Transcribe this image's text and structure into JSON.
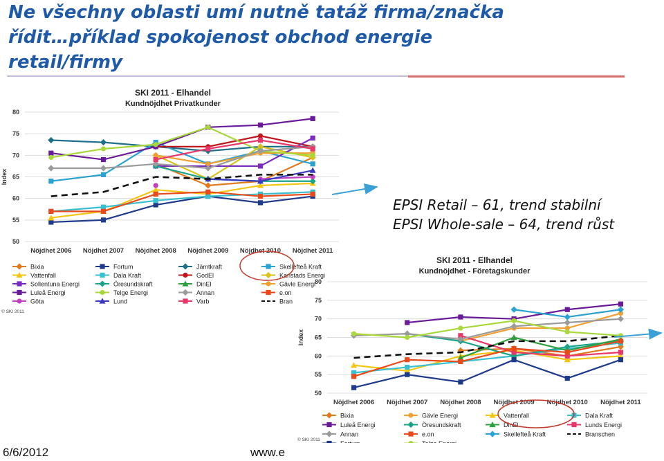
{
  "slide": {
    "title_lines": [
      "Ne všechny oblasti umí nutně tatáž firma/značka",
      "řídit…příklad spokojenost  obchod energie",
      "retail/firmy"
    ],
    "annotation_lines": [
      "EPSI Retail – 61, trend stabilní",
      "EPSI Whole-sale – 64, trend růst"
    ],
    "footer_date": "6/6/2012",
    "footer_www": "www.e"
  },
  "colors": {
    "title": "#1f5aa8",
    "arrow": "#3aa0d6",
    "circle": "#c0392b"
  },
  "chart_data": [
    {
      "type": "line",
      "title": "SKI 2011 - Elhandel",
      "subtitle": "Kundnöjdhet Privatkunder",
      "xlabel": "",
      "ylabel": "Index",
      "ylim": [
        50,
        80
      ],
      "yticks": [
        50,
        55,
        60,
        65,
        70,
        75,
        80
      ],
      "categories": [
        "Nöjdhet 2006",
        "Nöjdhet 2007",
        "Nöjdhet 2008",
        "Nöjdhet 2009",
        "Nöjdhet 2010",
        "Nöjdhet 2011"
      ],
      "copyright": "© SKI 2011",
      "grid": true,
      "series": [
        {
          "name": "Bixia",
          "color": "#e07b20",
          "marker": "diamond",
          "values": [
            null,
            null,
            68,
            63,
            64,
            69.5
          ]
        },
        {
          "name": "Fortum",
          "color": "#1e3a8a",
          "marker": "square",
          "values": [
            54.5,
            55,
            58.5,
            60.5,
            59,
            60.5
          ]
        },
        {
          "name": "Jämtkraft",
          "color": "#1f6f8b",
          "marker": "diamond",
          "values": [
            73.5,
            73,
            72,
            71,
            72,
            72
          ]
        },
        {
          "name": "Skellefteå Kraft",
          "color": "#2ba3d0",
          "marker": "square",
          "values": [
            64,
            65.5,
            73,
            68,
            71,
            68
          ]
        },
        {
          "name": "Vattenfall",
          "color": "#f3c612",
          "marker": "triangle",
          "values": [
            55.5,
            57,
            62,
            61,
            63,
            63.5
          ]
        },
        {
          "name": "Dala Kraft",
          "color": "#39c0d0",
          "marker": "square",
          "values": [
            57,
            58,
            59.5,
            60.5,
            61,
            61.5
          ]
        },
        {
          "name": "GodEl",
          "color": "#c0151a",
          "marker": "circle",
          "values": [
            null,
            null,
            72,
            72,
            74.5,
            72
          ]
        },
        {
          "name": "Karlstads Energi",
          "color": "#d9c21a",
          "marker": "diamond",
          "values": [
            null,
            null,
            70,
            64.5,
            72,
            69.5
          ]
        },
        {
          "name": "Sollentuna Energi",
          "color": "#7b2cbf",
          "marker": "square",
          "values": [
            null,
            null,
            67.5,
            67.5,
            67.5,
            74
          ]
        },
        {
          "name": "Öresundskraft",
          "color": "#1aa389",
          "marker": "diamond",
          "values": [
            null,
            null,
            67.5,
            64.5,
            64,
            64
          ]
        },
        {
          "name": "DinEl",
          "color": "#2e9e3e",
          "marker": "triangle",
          "values": [
            null,
            null,
            null,
            null,
            null,
            null
          ]
        },
        {
          "name": "Gävle Energi",
          "color": "#f0a030",
          "marker": "circle",
          "values": [
            null,
            null,
            70,
            68,
            70.5,
            70.5
          ]
        },
        {
          "name": "Luleå Energi",
          "color": "#6a1b9a",
          "marker": "square",
          "values": [
            70.5,
            69,
            72,
            76.5,
            77,
            78.5
          ]
        },
        {
          "name": "Telge Energi",
          "color": "#a8d83a",
          "marker": "circle",
          "values": [
            69.5,
            71.5,
            72.5,
            76.5,
            71,
            70
          ]
        },
        {
          "name": "Annan",
          "color": "#9a9a9a",
          "marker": "diamond",
          "values": [
            67,
            67,
            68,
            67,
            71,
            72
          ]
        },
        {
          "name": "e.on",
          "color": "#e84a1c",
          "marker": "square",
          "values": [
            57,
            57,
            61,
            61.5,
            60.5,
            61
          ]
        },
        {
          "name": "Göta",
          "color": "#c040c0",
          "marker": "circle",
          "values": [
            null,
            null,
            63,
            null,
            64.5,
            65
          ]
        },
        {
          "name": "Lund",
          "color": "#3a3ac0",
          "marker": "triangle",
          "values": [
            null,
            null,
            null,
            64.5,
            64,
            66.5
          ]
        },
        {
          "name": "Varb",
          "color": "#e8386a",
          "marker": "square",
          "values": [
            null,
            null,
            69,
            71.5,
            73.5,
            71.5
          ]
        },
        {
          "name": "Bran",
          "color": "#111111",
          "marker": "none",
          "dashed": true,
          "values": [
            60.5,
            61.5,
            65,
            64.5,
            65.5,
            65.5
          ]
        }
      ]
    },
    {
      "type": "line",
      "title": "SKI 2011 - Elhandel",
      "subtitle": "Kundnöjdhet - Företagskunder",
      "xlabel": "",
      "ylabel": "Index",
      "ylim": [
        50,
        80
      ],
      "yticks": [
        50,
        55,
        60,
        65,
        70,
        75,
        80
      ],
      "categories": [
        "Nöjdhet 2006",
        "Nöjdhet 2007",
        "Nöjdhet 2008",
        "Nöjdhet 2009",
        "Nöjdhet 2010",
        "Nöjdhet 2011"
      ],
      "copyright": "© SKI 2011",
      "grid": true,
      "series": [
        {
          "name": "Bixia",
          "color": "#e07b20",
          "marker": "diamond",
          "values": [
            null,
            null,
            61.5,
            62,
            60,
            62.5
          ]
        },
        {
          "name": "Gävle Energi",
          "color": "#f0a030",
          "marker": "circle",
          "values": [
            null,
            null,
            64,
            67.5,
            67.5,
            71.5
          ]
        },
        {
          "name": "Vattenfall",
          "color": "#f3c612",
          "marker": "triangle",
          "values": [
            57.5,
            56,
            60,
            61.5,
            59,
            60
          ]
        },
        {
          "name": "Dala Kraft",
          "color": "#39c0d0",
          "marker": "square",
          "values": [
            55.5,
            57,
            58.5,
            60,
            62,
            63.5
          ]
        },
        {
          "name": "Luleå Energi",
          "color": "#6a1b9a",
          "marker": "square",
          "values": [
            null,
            69,
            70.5,
            70,
            72.5,
            74
          ]
        },
        {
          "name": "Öresundskraft",
          "color": "#1aa389",
          "marker": "diamond",
          "values": [
            null,
            66,
            64,
            60,
            62.5,
            64
          ]
        },
        {
          "name": "DinEl",
          "color": "#2e9e3e",
          "marker": "triangle",
          "values": [
            null,
            null,
            59.5,
            65,
            61.5,
            64.5
          ]
        },
        {
          "name": "Lunds Energi",
          "color": "#e8386a",
          "marker": "square",
          "values": [
            null,
            null,
            65.5,
            61,
            60,
            61
          ]
        },
        {
          "name": "Annan",
          "color": "#9a9a9a",
          "marker": "diamond",
          "values": [
            65.5,
            66,
            64.5,
            68,
            69,
            70
          ]
        },
        {
          "name": "e.on",
          "color": "#e84a1c",
          "marker": "square",
          "values": [
            54.5,
            59,
            58.5,
            62,
            61,
            64
          ]
        },
        {
          "name": "Skellefteå Kraft",
          "color": "#2ba3d0",
          "marker": "diamond",
          "values": [
            null,
            null,
            null,
            72.5,
            70.5,
            72.5
          ]
        },
        {
          "name": "Branschen",
          "color": "#111111",
          "marker": "none",
          "dashed": true,
          "values": [
            59.5,
            60.5,
            61,
            64,
            64,
            65.5
          ]
        },
        {
          "name": "Fortum",
          "color": "#1e3a8a",
          "marker": "square",
          "values": [
            51.5,
            55,
            53,
            59,
            54,
            59
          ]
        },
        {
          "name": "Telge Energi",
          "color": "#a8d83a",
          "marker": "circle",
          "values": [
            66,
            65,
            67.5,
            69.5,
            66.5,
            65.5
          ]
        }
      ]
    }
  ]
}
